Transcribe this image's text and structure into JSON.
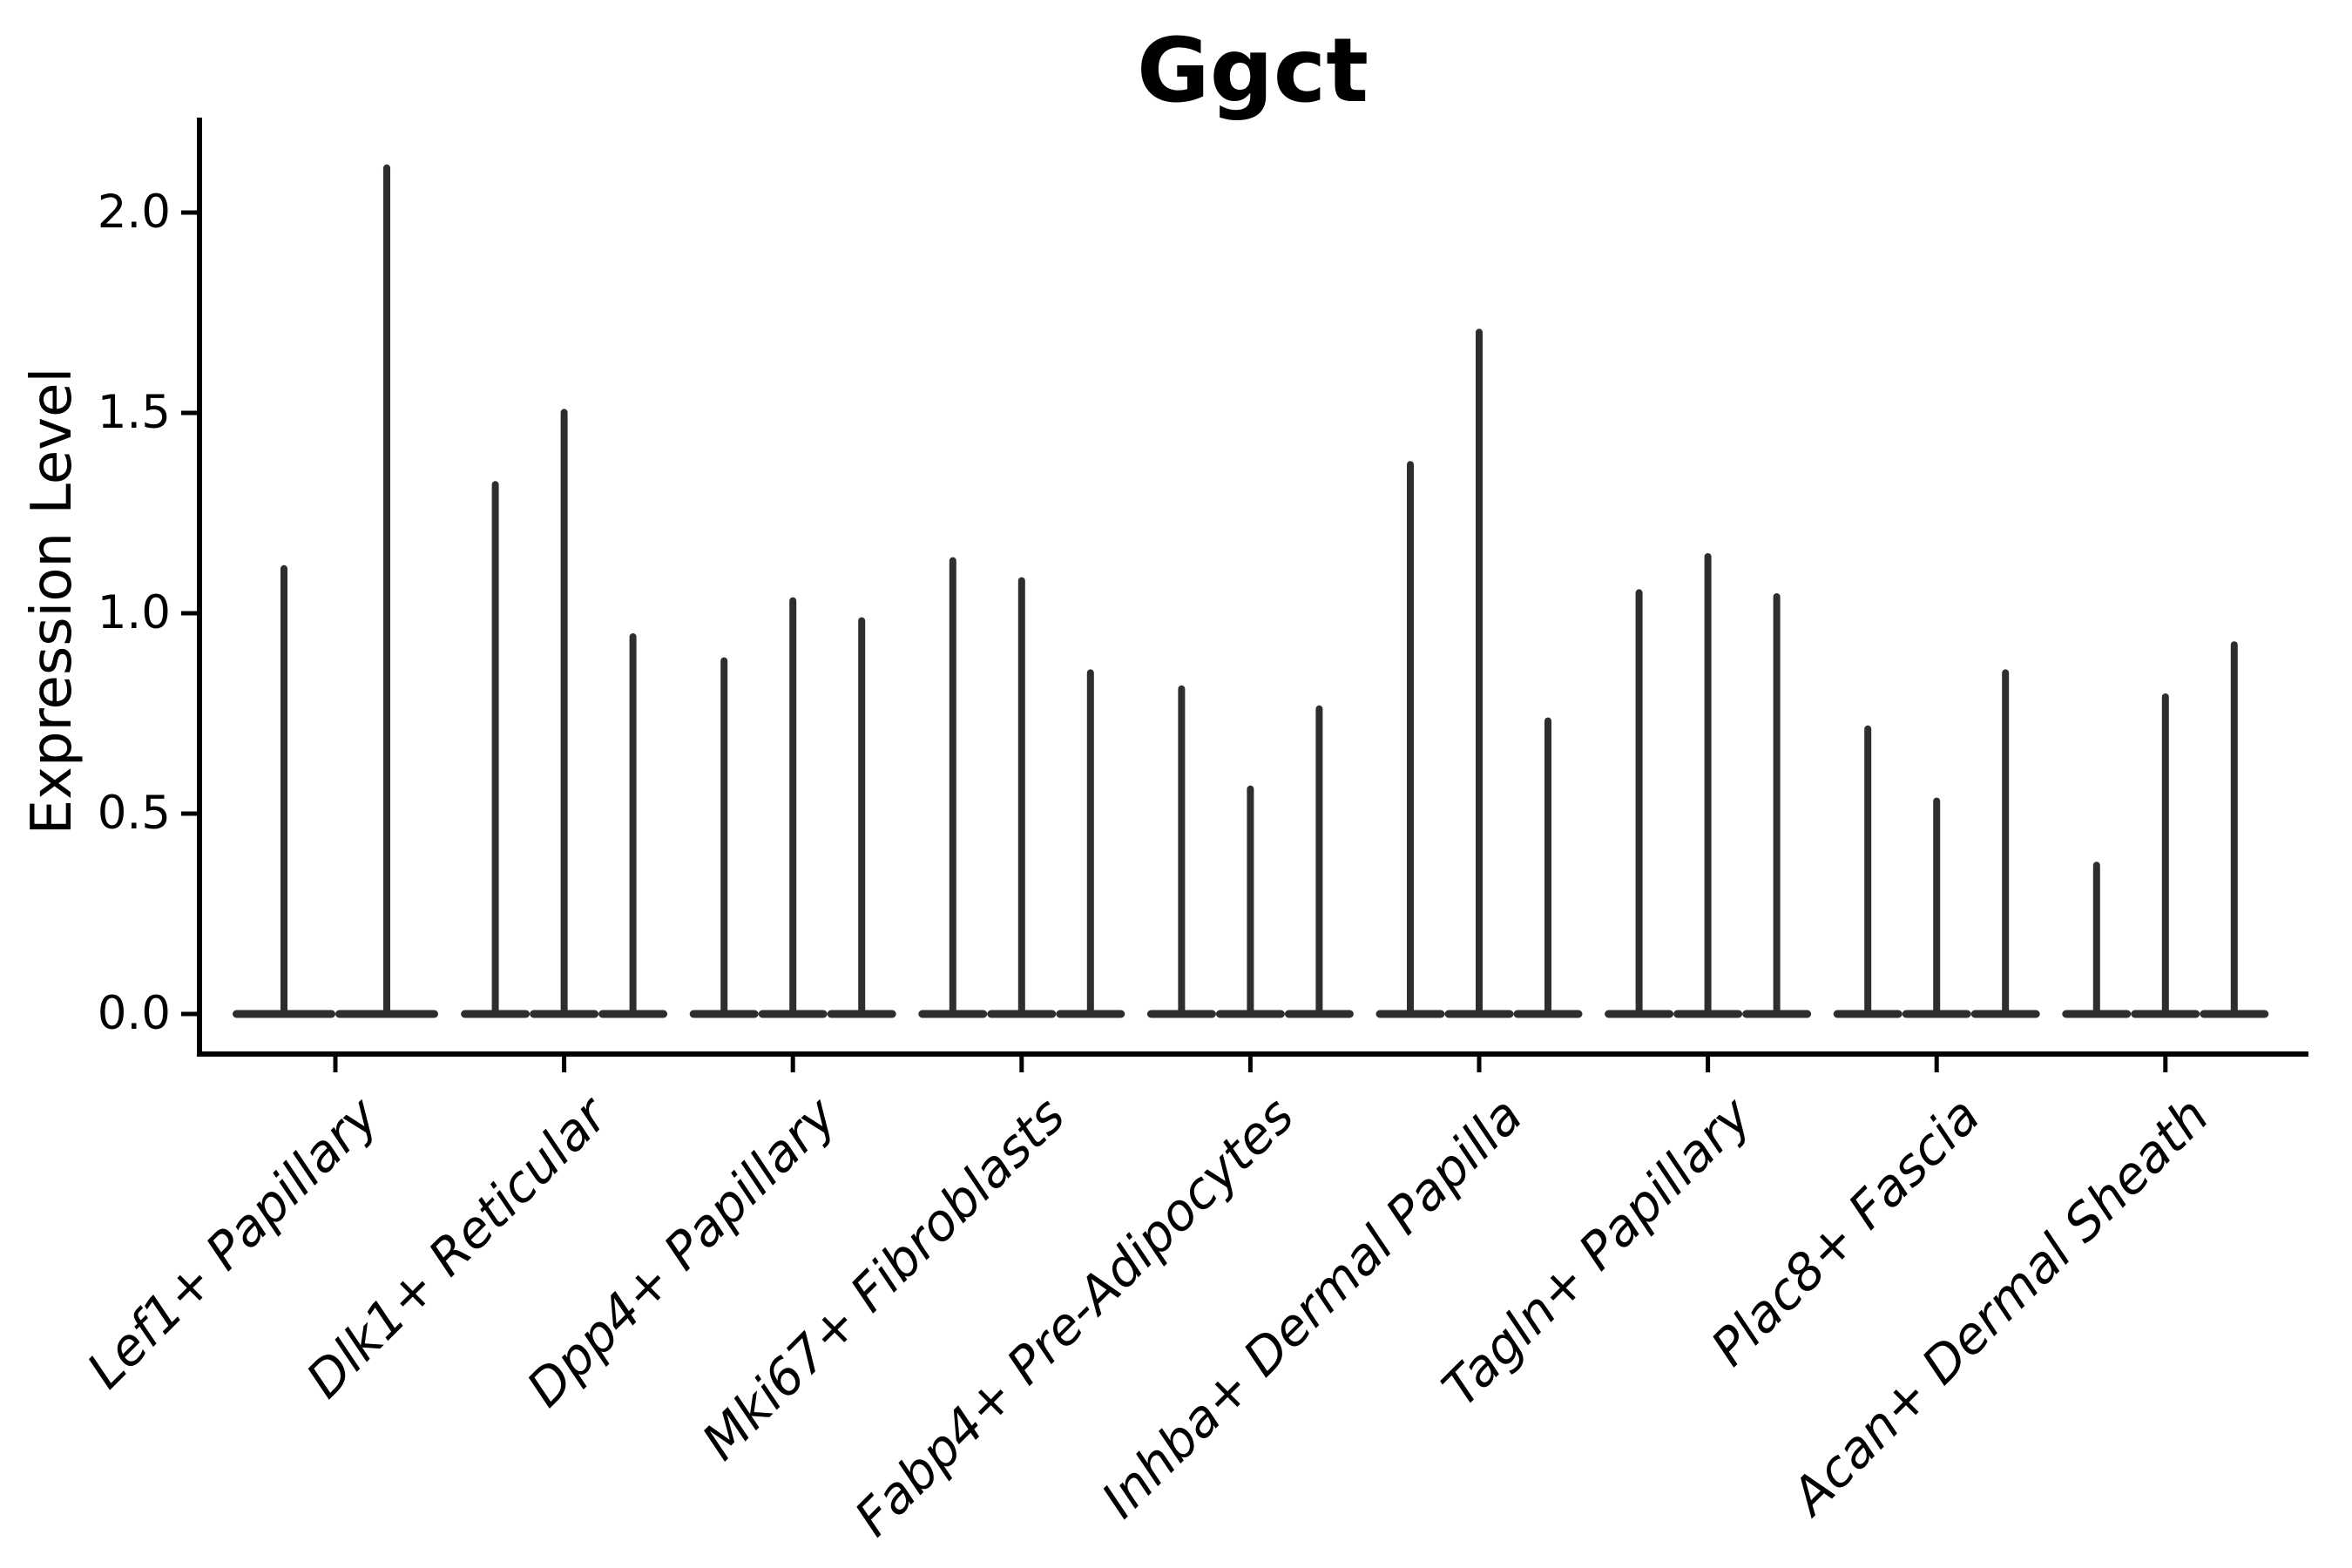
{
  "chart_data": {
    "type": "violin",
    "title": "Ggct",
    "ylabel": "Expression Level",
    "xlabel": "",
    "ytick_labels": [
      "0.0",
      "0.5",
      "1.0",
      "1.5",
      "2.0"
    ],
    "yticks": [
      0.0,
      0.5,
      1.0,
      1.5,
      2.0
    ],
    "ylim": [
      -0.1,
      2.24
    ],
    "grid": false,
    "legend": "none",
    "description": "Very thin violin plot of gene expression; each cell-type category shows 2-3 needle-like violins (flat base at 0 with a thin spike up to the maximum expression value).",
    "categories": [
      "Lef1+ Papillary",
      "Dlk1+ Reticular",
      "Dpp4+ Papillary",
      "Mki67+ Fibroblasts",
      "Fabp4+ Pre-Adipocytes",
      "Inhba+ Dermal Papilla",
      "Tagln+ Papillary",
      "Plac8+ Fascia",
      "Acan+ Dermal Sheath"
    ],
    "groups": [
      {
        "category": "Lef1+ Papillary",
        "violin_maxima": [
          1.12,
          2.12
        ]
      },
      {
        "category": "Dlk1+ Reticular",
        "violin_maxima": [
          1.33,
          1.51,
          0.95
        ]
      },
      {
        "category": "Dpp4+ Papillary",
        "violin_maxima": [
          0.89,
          1.04,
          0.99
        ]
      },
      {
        "category": "Mki67+ Fibroblasts",
        "violin_maxima": [
          1.14,
          1.09,
          0.86
        ]
      },
      {
        "category": "Fabp4+ Pre-Adipocytes",
        "violin_maxima": [
          0.82,
          0.57,
          0.77
        ]
      },
      {
        "category": "Inhba+ Dermal Papilla",
        "violin_maxima": [
          1.38,
          1.71,
          0.74
        ]
      },
      {
        "category": "Tagln+ Papillary",
        "violin_maxima": [
          1.06,
          1.15,
          1.05
        ]
      },
      {
        "category": "Plac8+ Fascia",
        "violin_maxima": [
          0.72,
          0.54,
          0.86
        ]
      },
      {
        "category": "Acan+ Dermal Sheath",
        "violin_maxima": [
          0.38,
          0.8,
          0.93
        ]
      }
    ],
    "colors": {
      "violin": "#2e2e2e",
      "axis": "#000000",
      "text": "#000000",
      "background": "#ffffff"
    }
  }
}
